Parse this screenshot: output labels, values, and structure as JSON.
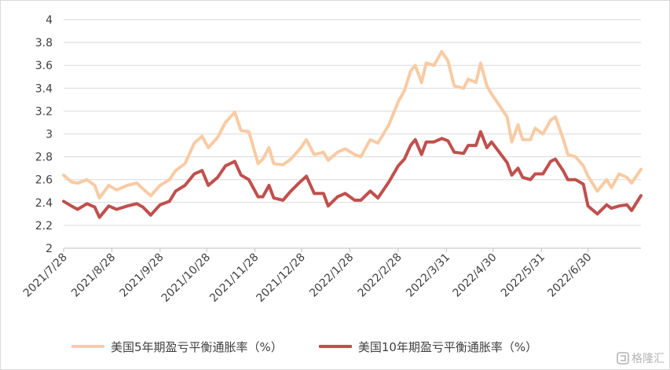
{
  "chart_data": {
    "type": "line",
    "title": "",
    "xlabel": "",
    "ylabel": "",
    "ylim": [
      2,
      4
    ],
    "y_ticks": [
      "2",
      "2.2",
      "2.4",
      "2.6",
      "2.8",
      "3",
      "3.2",
      "3.4",
      "3.6",
      "3.8",
      "4"
    ],
    "x_ticks": [
      "2021/7/28",
      "2021/8/28",
      "2021/9/28",
      "2021/10/28",
      "2021/11/28",
      "2021/12/28",
      "2022/1/28",
      "2022/2/28",
      "2022/3/31",
      "2022/4/30",
      "2022/5/31",
      "2022/6/30"
    ],
    "grid": "horizontal",
    "legend_position": "bottom",
    "series": [
      {
        "name": "美国5年期盈亏平衡通胀率（%）",
        "color": "#f8cba4",
        "points": [
          [
            "2021-07-28",
            2.64
          ],
          [
            "2021-08-02",
            2.58
          ],
          [
            "2021-08-06",
            2.57
          ],
          [
            "2021-08-12",
            2.6
          ],
          [
            "2021-08-17",
            2.55
          ],
          [
            "2021-08-20",
            2.44
          ],
          [
            "2021-08-26",
            2.55
          ],
          [
            "2021-08-31",
            2.51
          ],
          [
            "2021-09-07",
            2.55
          ],
          [
            "2021-09-13",
            2.57
          ],
          [
            "2021-09-17",
            2.52
          ],
          [
            "2021-09-22",
            2.46
          ],
          [
            "2021-09-28",
            2.55
          ],
          [
            "2021-10-04",
            2.6
          ],
          [
            "2021-10-08",
            2.68
          ],
          [
            "2021-10-14",
            2.74
          ],
          [
            "2021-10-20",
            2.92
          ],
          [
            "2021-10-25",
            2.98
          ],
          [
            "2021-10-29",
            2.88
          ],
          [
            "2021-11-04",
            2.97
          ],
          [
            "2021-11-09",
            3.1
          ],
          [
            "2021-11-15",
            3.19
          ],
          [
            "2021-11-19",
            3.03
          ],
          [
            "2021-11-24",
            3.02
          ],
          [
            "2021-11-30",
            2.74
          ],
          [
            "2021-12-03",
            2.78
          ],
          [
            "2021-12-07",
            2.88
          ],
          [
            "2021-12-10",
            2.74
          ],
          [
            "2021-12-16",
            2.73
          ],
          [
            "2021-12-21",
            2.78
          ],
          [
            "2021-12-27",
            2.87
          ],
          [
            "2021-12-31",
            2.95
          ],
          [
            "2022-01-05",
            2.82
          ],
          [
            "2022-01-11",
            2.84
          ],
          [
            "2022-01-14",
            2.77
          ],
          [
            "2022-01-20",
            2.84
          ],
          [
            "2022-01-25",
            2.87
          ],
          [
            "2022-01-31",
            2.82
          ],
          [
            "2022-02-04",
            2.8
          ],
          [
            "2022-02-10",
            2.95
          ],
          [
            "2022-02-15",
            2.92
          ],
          [
            "2022-02-22",
            3.08
          ],
          [
            "2022-02-28",
            3.28
          ],
          [
            "2022-03-04",
            3.38
          ],
          [
            "2022-03-08",
            3.55
          ],
          [
            "2022-03-11",
            3.6
          ],
          [
            "2022-03-15",
            3.45
          ],
          [
            "2022-03-18",
            3.62
          ],
          [
            "2022-03-23",
            3.6
          ],
          [
            "2022-03-28",
            3.72
          ],
          [
            "2022-04-01",
            3.64
          ],
          [
            "2022-04-05",
            3.42
          ],
          [
            "2022-04-11",
            3.4
          ],
          [
            "2022-04-14",
            3.48
          ],
          [
            "2022-04-19",
            3.45
          ],
          [
            "2022-04-22",
            3.62
          ],
          [
            "2022-04-26",
            3.42
          ],
          [
            "2022-04-29",
            3.35
          ],
          [
            "2022-05-04",
            3.25
          ],
          [
            "2022-05-09",
            3.15
          ],
          [
            "2022-05-12",
            2.93
          ],
          [
            "2022-05-16",
            3.08
          ],
          [
            "2022-05-19",
            2.95
          ],
          [
            "2022-05-24",
            2.95
          ],
          [
            "2022-05-27",
            3.05
          ],
          [
            "2022-06-01",
            3.0
          ],
          [
            "2022-06-06",
            3.12
          ],
          [
            "2022-06-09",
            3.15
          ],
          [
            "2022-06-14",
            2.96
          ],
          [
            "2022-06-17",
            2.82
          ],
          [
            "2022-06-22",
            2.8
          ],
          [
            "2022-06-27",
            2.72
          ],
          [
            "2022-06-30",
            2.63
          ],
          [
            "2022-07-06",
            2.5
          ],
          [
            "2022-07-12",
            2.6
          ],
          [
            "2022-07-15",
            2.53
          ],
          [
            "2022-07-20",
            2.65
          ],
          [
            "2022-07-25",
            2.62
          ],
          [
            "2022-07-28",
            2.57
          ],
          [
            "2022-08-03",
            2.69
          ]
        ]
      },
      {
        "name": "美国10年期盈亏平衡通胀率（%）",
        "color": "#c0504d",
        "points": [
          [
            "2021-07-28",
            2.41
          ],
          [
            "2021-08-02",
            2.37
          ],
          [
            "2021-08-06",
            2.34
          ],
          [
            "2021-08-12",
            2.39
          ],
          [
            "2021-08-17",
            2.36
          ],
          [
            "2021-08-20",
            2.27
          ],
          [
            "2021-08-26",
            2.37
          ],
          [
            "2021-08-31",
            2.34
          ],
          [
            "2021-09-07",
            2.37
          ],
          [
            "2021-09-13",
            2.39
          ],
          [
            "2021-09-17",
            2.36
          ],
          [
            "2021-09-22",
            2.29
          ],
          [
            "2021-09-28",
            2.38
          ],
          [
            "2021-10-04",
            2.41
          ],
          [
            "2021-10-08",
            2.5
          ],
          [
            "2021-10-14",
            2.55
          ],
          [
            "2021-10-20",
            2.65
          ],
          [
            "2021-10-25",
            2.68
          ],
          [
            "2021-10-29",
            2.55
          ],
          [
            "2021-11-04",
            2.62
          ],
          [
            "2021-11-09",
            2.72
          ],
          [
            "2021-11-15",
            2.76
          ],
          [
            "2021-11-19",
            2.64
          ],
          [
            "2021-11-24",
            2.6
          ],
          [
            "2021-11-30",
            2.45
          ],
          [
            "2021-12-03",
            2.45
          ],
          [
            "2021-12-07",
            2.55
          ],
          [
            "2021-12-10",
            2.44
          ],
          [
            "2021-12-16",
            2.42
          ],
          [
            "2021-12-21",
            2.5
          ],
          [
            "2021-12-27",
            2.58
          ],
          [
            "2021-12-31",
            2.63
          ],
          [
            "2022-01-05",
            2.48
          ],
          [
            "2022-01-11",
            2.48
          ],
          [
            "2022-01-14",
            2.37
          ],
          [
            "2022-01-20",
            2.45
          ],
          [
            "2022-01-25",
            2.48
          ],
          [
            "2022-01-31",
            2.42
          ],
          [
            "2022-02-04",
            2.42
          ],
          [
            "2022-02-10",
            2.5
          ],
          [
            "2022-02-15",
            2.44
          ],
          [
            "2022-02-22",
            2.58
          ],
          [
            "2022-02-28",
            2.72
          ],
          [
            "2022-03-04",
            2.78
          ],
          [
            "2022-03-08",
            2.9
          ],
          [
            "2022-03-11",
            2.95
          ],
          [
            "2022-03-15",
            2.82
          ],
          [
            "2022-03-18",
            2.93
          ],
          [
            "2022-03-23",
            2.93
          ],
          [
            "2022-03-28",
            2.96
          ],
          [
            "2022-04-01",
            2.94
          ],
          [
            "2022-04-05",
            2.84
          ],
          [
            "2022-04-11",
            2.83
          ],
          [
            "2022-04-14",
            2.9
          ],
          [
            "2022-04-19",
            2.9
          ],
          [
            "2022-04-22",
            3.02
          ],
          [
            "2022-04-26",
            2.88
          ],
          [
            "2022-04-29",
            2.93
          ],
          [
            "2022-05-04",
            2.84
          ],
          [
            "2022-05-09",
            2.75
          ],
          [
            "2022-05-12",
            2.64
          ],
          [
            "2022-05-16",
            2.7
          ],
          [
            "2022-05-19",
            2.62
          ],
          [
            "2022-05-24",
            2.6
          ],
          [
            "2022-05-27",
            2.65
          ],
          [
            "2022-06-01",
            2.65
          ],
          [
            "2022-06-06",
            2.76
          ],
          [
            "2022-06-09",
            2.78
          ],
          [
            "2022-06-14",
            2.68
          ],
          [
            "2022-06-17",
            2.6
          ],
          [
            "2022-06-22",
            2.6
          ],
          [
            "2022-06-27",
            2.56
          ],
          [
            "2022-06-30",
            2.37
          ],
          [
            "2022-07-06",
            2.3
          ],
          [
            "2022-07-12",
            2.38
          ],
          [
            "2022-07-15",
            2.35
          ],
          [
            "2022-07-20",
            2.37
          ],
          [
            "2022-07-25",
            2.38
          ],
          [
            "2022-07-28",
            2.33
          ],
          [
            "2022-08-03",
            2.46
          ]
        ]
      }
    ]
  },
  "legend": {
    "items": [
      {
        "label": "美国5年期盈亏平衡通胀率（%）",
        "color": "#f8cba4"
      },
      {
        "label": "美国10年期盈亏平衡通胀率（%）",
        "color": "#c0504d"
      }
    ]
  },
  "watermark": {
    "text": "格隆汇",
    "icon": "gelonghui-logo-icon"
  }
}
